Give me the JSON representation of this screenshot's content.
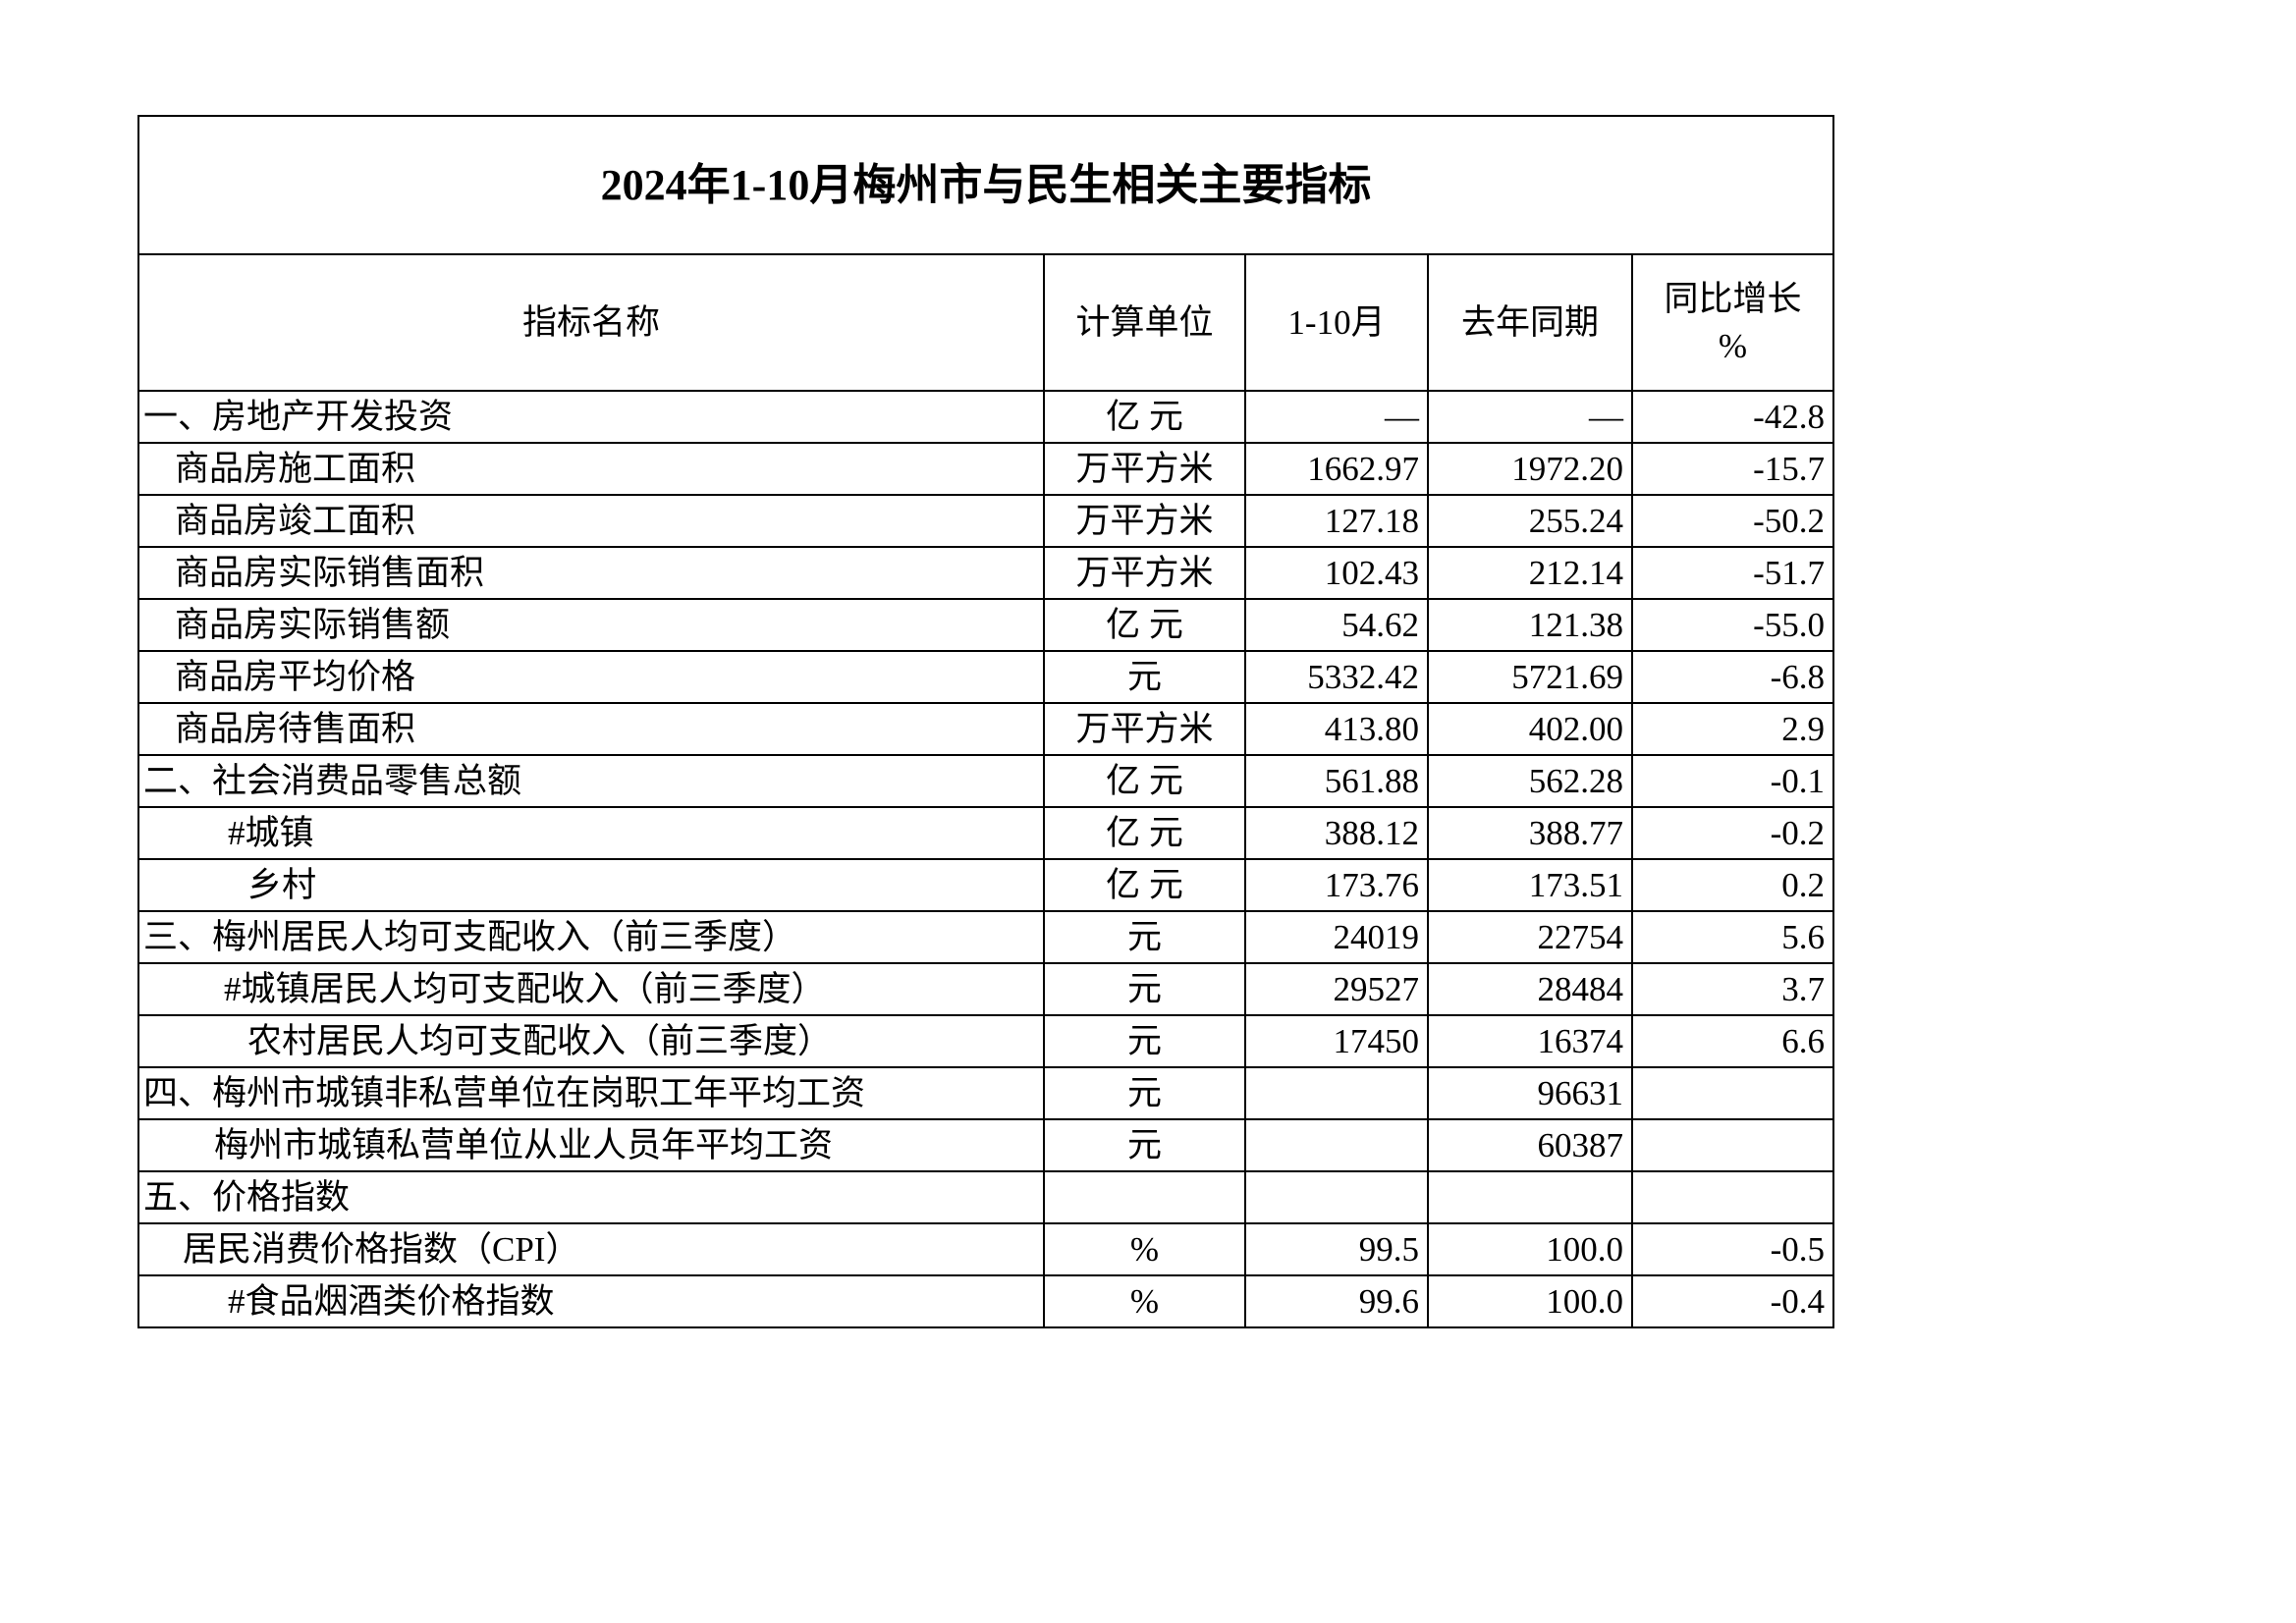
{
  "title": "2024年1-10月梅州市与民生相关主要指标",
  "headers": {
    "name": "指标名称",
    "unit": "计算单位",
    "current": "1-10月",
    "last_year": "去年同期",
    "growth_line1": "同比增长",
    "growth_line2": "%"
  },
  "rows": [
    {
      "name": "一、房地产开发投资",
      "indent": 0,
      "unit": "亿 元",
      "current": "—",
      "last_year": "—",
      "growth": "-42.8"
    },
    {
      "name": "商品房施工面积",
      "indent": 1,
      "unit": "万平方米",
      "current": "1662.97",
      "last_year": "1972.20",
      "growth": "-15.7"
    },
    {
      "name": "商品房竣工面积",
      "indent": 1,
      "unit": "万平方米",
      "current": "127.18",
      "last_year": "255.24",
      "growth": "-50.2"
    },
    {
      "name": "商品房实际销售面积",
      "indent": 1,
      "unit": "万平方米",
      "current": "102.43",
      "last_year": "212.14",
      "growth": "-51.7"
    },
    {
      "name": "商品房实际销售额",
      "indent": 1,
      "unit": "亿 元",
      "current": "54.62",
      "last_year": "121.38",
      "growth": "-55.0"
    },
    {
      "name": "商品房平均价格",
      "indent": 1,
      "unit": "元",
      "current": "5332.42",
      "last_year": "5721.69",
      "growth": "-6.8"
    },
    {
      "name": "商品房待售面积",
      "indent": 1,
      "unit": "万平方米",
      "current": "413.80",
      "last_year": "402.00",
      "growth": "2.9"
    },
    {
      "name": "二、社会消费品零售总额",
      "indent": 0,
      "unit": "亿 元",
      "current": "561.88",
      "last_year": "562.28",
      "growth": "-0.1"
    },
    {
      "name": "#城镇",
      "indent": 3,
      "unit": "亿 元",
      "current": "388.12",
      "last_year": "388.77",
      "growth": "-0.2"
    },
    {
      "name": "乡村",
      "indent": 4,
      "unit": "亿 元",
      "current": "173.76",
      "last_year": "173.51",
      "growth": "0.2"
    },
    {
      "name": "三、梅州居民人均可支配收入（前三季度）",
      "indent": 0,
      "unit": "元",
      "current": "24019",
      "last_year": "22754",
      "growth": "5.6"
    },
    {
      "name": "#城镇居民人均可支配收入（前三季度）",
      "indent": 7,
      "unit": "元",
      "current": "29527",
      "last_year": "28484",
      "growth": "3.7"
    },
    {
      "name": "农村居民人均可支配收入（前三季度）",
      "indent": 4,
      "unit": "元",
      "current": "17450",
      "last_year": "16374",
      "growth": "6.6"
    },
    {
      "name": "四、梅州市城镇非私营单位在岗职工年平均工资",
      "indent": 0,
      "unit": "元",
      "current": "",
      "last_year": "96631",
      "growth": ""
    },
    {
      "name": "梅州市城镇私营单位从业人员年平均工资",
      "indent": 6,
      "unit": "元",
      "current": "",
      "last_year": "60387",
      "growth": ""
    },
    {
      "name": "五、价格指数",
      "indent": 0,
      "unit": "",
      "current": "",
      "last_year": "",
      "growth": ""
    },
    {
      "name": "居民消费价格指数（CPI）",
      "indent": 2,
      "unit": "%",
      "current": "99.5",
      "last_year": "100.0",
      "growth": "-0.5"
    },
    {
      "name": "#食品烟酒类价格指数",
      "indent": 3,
      "unit": "%",
      "current": "99.6",
      "last_year": "100.0",
      "growth": "-0.4"
    }
  ]
}
